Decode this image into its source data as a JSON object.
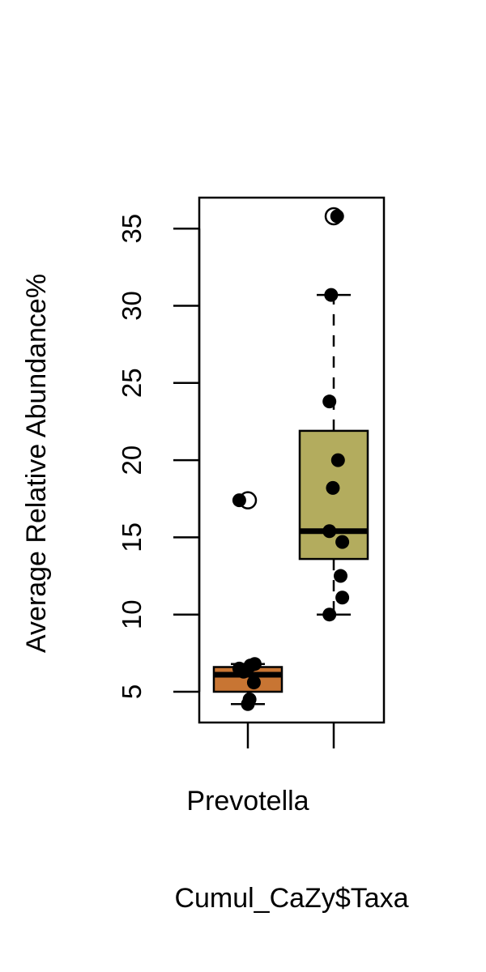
{
  "chart_data": {
    "type": "box",
    "title": "",
    "xlabel": "Cumul_CaZy$Taxa",
    "ylabel": "Average Relative Abundance%",
    "category_label": "Prevotella",
    "ylim": [
      3,
      37
    ],
    "yticks": [
      5,
      10,
      15,
      20,
      25,
      30,
      35
    ],
    "grid": false,
    "legend": "none",
    "groups": [
      {
        "color": "#c87533",
        "whisker_low": 4.2,
        "q1": 5.0,
        "median": 6.1,
        "q3": 6.6,
        "whisker_high": 6.8,
        "outliers": [
          17.4
        ],
        "points": [
          4.2,
          4.5,
          5.6,
          6.3,
          6.5,
          6.7,
          6.8,
          17.4
        ],
        "jitter": [
          0.0,
          0.02,
          0.07,
          -0.05,
          -0.1,
          0.03,
          0.08,
          -0.1
        ]
      },
      {
        "color": "#b3ac5e",
        "whisker_low": 10.0,
        "q1": 13.6,
        "median": 15.4,
        "q3": 21.9,
        "whisker_high": 30.7,
        "outliers": [
          35.8
        ],
        "points": [
          10.0,
          11.1,
          12.5,
          14.7,
          15.4,
          18.2,
          20.0,
          23.8,
          30.7,
          35.8
        ],
        "jitter": [
          -0.05,
          0.1,
          0.08,
          0.1,
          -0.05,
          -0.01,
          0.05,
          -0.05,
          -0.03,
          0.04
        ]
      }
    ]
  }
}
